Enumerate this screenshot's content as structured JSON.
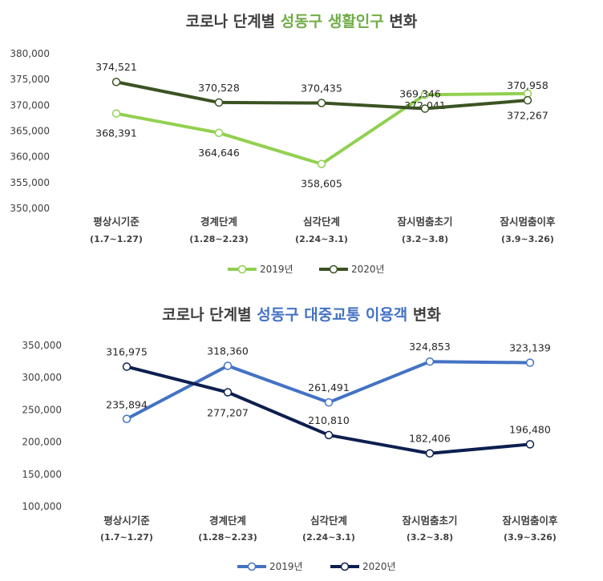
{
  "chart_data": [
    {
      "type": "line",
      "title_parts": [
        "코로나 단계별 ",
        "성동구 생활인구",
        " 변화"
      ],
      "title_colors": [
        "#404040",
        "#70ad47",
        "#404040"
      ],
      "categories": [
        "평상시기준",
        "경계단계",
        "심각단계",
        "잠시멈춤초기",
        "잠시멈춤이후"
      ],
      "category_sub": [
        "(1.7~1.27)",
        "(1.28~2.23)",
        "(2.24~3.1)",
        "(3.2~3.8)",
        "(3.9~3.26)"
      ],
      "y_ticks": [
        "380,000",
        "375,000",
        "370,000",
        "365,000",
        "360,000",
        "355,000",
        "350,000"
      ],
      "ylim": [
        350000,
        380000
      ],
      "grid": false,
      "legend_position": "bottom",
      "series": [
        {
          "name": "2019년",
          "color": "#92d050",
          "values": [
            368391,
            364646,
            358605,
            372041,
            372267
          ],
          "labels": [
            "368,391",
            "364,646",
            "358,605",
            "372,041",
            "372,267"
          ]
        },
        {
          "name": "2020년",
          "color": "#3b5323",
          "values": [
            374521,
            370528,
            370435,
            369346,
            370958
          ],
          "labels": [
            "374,521",
            "370,528",
            "370,435",
            "369,346",
            "370,958"
          ]
        }
      ]
    },
    {
      "type": "line",
      "title_parts": [
        "코로나 단계별 ",
        "성동구 대중교통 이용객",
        " 변화"
      ],
      "title_colors": [
        "#404040",
        "#4472c4",
        "#404040"
      ],
      "categories": [
        "평상시기준",
        "경계단계",
        "심각단계",
        "잠시멈춤초기",
        "잠시멈춤이후"
      ],
      "category_sub": [
        "(1.7~1.27)",
        "(1.28~2.23)",
        "(2.24~3.1)",
        "(3.2~3.8)",
        "(3.9~3.26)"
      ],
      "y_ticks": [
        "350,000",
        "300,000",
        "250,000",
        "200,000",
        "150,000",
        "100,000"
      ],
      "ylim": [
        100000,
        350000
      ],
      "grid": false,
      "legend_position": "bottom",
      "series": [
        {
          "name": "2019년",
          "color": "#4472c4",
          "values": [
            235894,
            318360,
            261491,
            324853,
            323139
          ],
          "labels": [
            "235,894",
            "318,360",
            "261,491",
            "324,853",
            "323,139"
          ]
        },
        {
          "name": "2020년",
          "color": "#0d1f4f",
          "values": [
            316975,
            277207,
            210810,
            182406,
            196480
          ],
          "labels": [
            "316,975",
            "277,207",
            "210,810",
            "182,406",
            "196,480"
          ]
        }
      ]
    }
  ]
}
